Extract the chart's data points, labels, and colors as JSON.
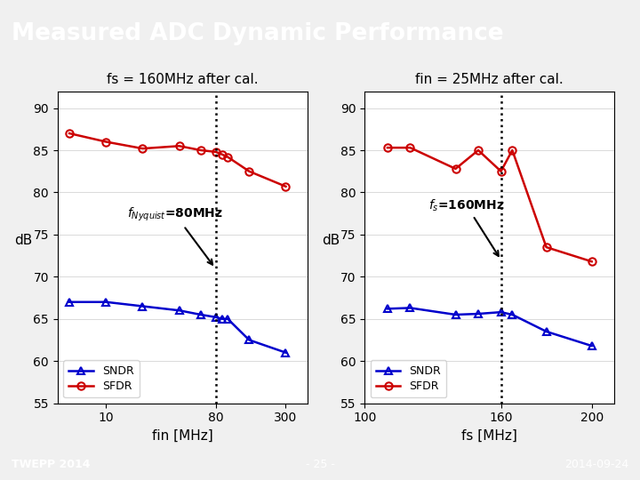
{
  "title": "Measured ADC Dynamic Performance",
  "title_bg": "#6b9c3c",
  "title_color": "white",
  "footer_bg": "#1c1c1c",
  "footer_left": "TWEPP 2014",
  "footer_center": "- 25 -",
  "footer_right": "2014-09-24",
  "plot1_title": "fs = 160MHz after cal.",
  "plot1_xlabel": "fin [MHz]",
  "plot1_ylabel": "dB",
  "plot1_vline": 80,
  "plot1_annotation": "$f_{Nyquist}$=80MHz",
  "plot1_sndr_x": [
    5,
    10,
    20,
    40,
    60,
    80,
    90,
    100,
    150,
    300
  ],
  "plot1_sndr_y": [
    67.0,
    67.0,
    66.5,
    66.0,
    65.5,
    65.2,
    65.0,
    65.0,
    62.5,
    61.0
  ],
  "plot1_sfdr_x": [
    5,
    10,
    20,
    40,
    60,
    80,
    90,
    100,
    150,
    300
  ],
  "plot1_sfdr_y": [
    87.0,
    86.0,
    85.2,
    85.5,
    85.0,
    84.8,
    84.5,
    84.2,
    82.5,
    80.7
  ],
  "plot1_xticks": [
    10,
    80,
    300
  ],
  "plot1_ylim": [
    55,
    92
  ],
  "plot1_yticks": [
    55,
    60,
    65,
    70,
    75,
    80,
    85,
    90
  ],
  "plot2_title": "fin = 25MHz after cal.",
  "plot2_xlabel": "fs [MHz]",
  "plot2_ylabel": "dB",
  "plot2_vline": 160,
  "plot2_annotation": "$f_s$=160MHz",
  "plot2_sndr_x": [
    110,
    120,
    140,
    150,
    160,
    165,
    180,
    200
  ],
  "plot2_sndr_y": [
    66.2,
    66.3,
    65.5,
    65.6,
    65.8,
    65.5,
    63.5,
    61.8
  ],
  "plot2_sfdr_x": [
    110,
    120,
    140,
    150,
    160,
    165,
    180,
    200
  ],
  "plot2_sfdr_y": [
    85.3,
    85.3,
    82.8,
    85.0,
    82.5,
    85.0,
    73.5,
    71.8
  ],
  "plot2_xticks": [
    100,
    160,
    200
  ],
  "plot2_ylim": [
    55,
    92
  ],
  "plot2_yticks": [
    55,
    60,
    65,
    70,
    75,
    80,
    85,
    90
  ],
  "sndr_color": "#0000cc",
  "sfdr_color": "#cc0000",
  "line_width": 1.8,
  "marker_size": 6,
  "bg_color": "#f0f0f0"
}
